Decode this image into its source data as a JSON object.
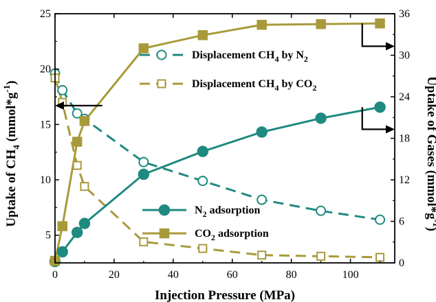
{
  "chart_data": {
    "type": "line",
    "xlabel": "Injection Pressure (MPa)",
    "ylabel_left": "Uptake of CH4 (mmol*g-1)",
    "ylabel_right": "Uptake of Gases (mmol*g-1)",
    "xlim": [
      0,
      115
    ],
    "ylim_left": [
      2.5,
      25
    ],
    "ylim_right": [
      0,
      36
    ],
    "xticks": [
      0,
      20,
      40,
      60,
      80,
      100
    ],
    "yticks_left": [
      5,
      10,
      15,
      20,
      25
    ],
    "yticks_right": [
      0,
      6,
      12,
      18,
      24,
      30,
      36
    ],
    "grid": false,
    "colors": {
      "teal": "#1f8a80",
      "olive": "#a89a3a"
    },
    "series": [
      {
        "name": "N2 adsorption",
        "axis": "right",
        "line": "solid",
        "marker": "circle-filled",
        "color": "#1f8a80",
        "x": [
          0,
          2.5,
          7.5,
          10,
          30,
          50,
          70,
          90,
          110
        ],
        "y": [
          0.2,
          1.6,
          4.4,
          5.7,
          12.8,
          16.1,
          18.9,
          20.9,
          22.5
        ]
      },
      {
        "name": "CO2 adsorption",
        "axis": "right",
        "line": "solid",
        "marker": "square-filled",
        "color": "#a89a3a",
        "x": [
          0,
          2.5,
          7.5,
          10,
          30,
          50,
          70,
          90,
          110
        ],
        "y": [
          0.3,
          5.3,
          17.5,
          20.5,
          31.0,
          32.9,
          34.4,
          34.5,
          34.6
        ]
      },
      {
        "name": "Displacement CH4 by N2",
        "axis": "left",
        "line": "dashed",
        "marker": "circle-open",
        "color": "#1f8a80",
        "x": [
          0,
          2.5,
          7.5,
          10,
          30,
          50,
          70,
          90,
          110
        ],
        "y": [
          19.6,
          18.1,
          16.0,
          15.5,
          11.6,
          9.9,
          8.2,
          7.2,
          6.4
        ]
      },
      {
        "name": "Displacement CH4 by CO2",
        "axis": "left",
        "line": "dashed",
        "marker": "square-open",
        "color": "#a89a3a",
        "x": [
          0,
          2.5,
          7.5,
          10,
          30,
          50,
          70,
          90,
          110
        ],
        "y": [
          19.2,
          17.0,
          11.3,
          9.4,
          4.4,
          3.8,
          3.2,
          3.1,
          3.0
        ]
      }
    ],
    "legend_top": [
      {
        "pre": "Displacement CH",
        "sub1": "4",
        "mid": " by N",
        "sub2": "2",
        "series": 2
      },
      {
        "pre": "Displacement CH",
        "sub1": "4",
        "mid": " by CO",
        "sub2": "2",
        "series": 3
      }
    ],
    "legend_bottom": [
      {
        "pre": "N",
        "sub1": "2",
        "mid": " adsorption",
        "series": 0
      },
      {
        "pre": "CO",
        "sub1": "2",
        "mid": " adsorption",
        "series": 1
      }
    ],
    "arrows": [
      {
        "direction": "left",
        "axis": "left",
        "x_start": 16,
        "x_end": 0,
        "y": 16.7
      },
      {
        "direction": "right",
        "axis": "right",
        "x_start": 104,
        "x_end": 115,
        "y_from": 34.6,
        "y_to": 31.3
      },
      {
        "direction": "right",
        "axis": "right",
        "x_start": 104,
        "x_end": 115,
        "y_from": 22.5,
        "y_to": 19.3
      }
    ]
  }
}
